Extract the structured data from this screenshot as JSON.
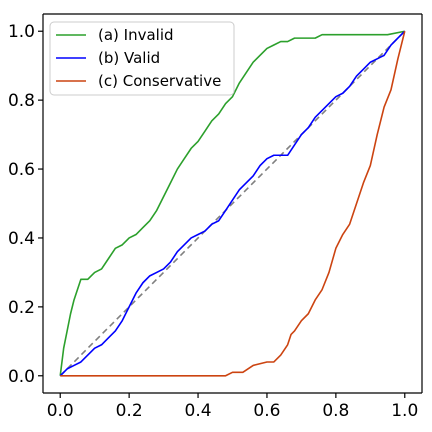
{
  "chart_data": {
    "type": "line",
    "title": "",
    "xlabel": "",
    "ylabel": "",
    "xlim": [
      -0.05,
      1.05
    ],
    "ylim": [
      -0.05,
      1.05
    ],
    "x_ticks": [
      0.0,
      0.2,
      0.4,
      0.6,
      0.8,
      1.0
    ],
    "x_tick_labels": [
      "0.0",
      "0.2",
      "0.4",
      "0.6",
      "0.8",
      "1.0"
    ],
    "y_ticks": [
      0.0,
      0.2,
      0.4,
      0.6,
      0.8,
      1.0
    ],
    "y_tick_labels": [
      "0.0",
      "0.2",
      "0.4",
      "0.6",
      "0.8",
      "1.0"
    ],
    "grid": false,
    "legend_position": "upper-left",
    "reference_line": {
      "style": "dashed",
      "color": "#808080",
      "x": [
        0.0,
        1.0
      ],
      "y": [
        0.0,
        1.0
      ]
    },
    "series": [
      {
        "name": "(a) Invalid",
        "color": "#2ca02c",
        "x": [
          0.0,
          0.01,
          0.02,
          0.03,
          0.04,
          0.05,
          0.06,
          0.07,
          0.08,
          0.09,
          0.1,
          0.12,
          0.14,
          0.16,
          0.18,
          0.2,
          0.22,
          0.24,
          0.26,
          0.28,
          0.3,
          0.32,
          0.34,
          0.36,
          0.38,
          0.4,
          0.42,
          0.44,
          0.46,
          0.48,
          0.5,
          0.52,
          0.54,
          0.56,
          0.58,
          0.6,
          0.62,
          0.64,
          0.66,
          0.68,
          0.7,
          0.72,
          0.74,
          0.76,
          0.8,
          0.85,
          0.9,
          0.95,
          1.0
        ],
        "y": [
          0.0,
          0.08,
          0.13,
          0.18,
          0.22,
          0.25,
          0.28,
          0.28,
          0.28,
          0.29,
          0.3,
          0.31,
          0.34,
          0.37,
          0.38,
          0.4,
          0.41,
          0.43,
          0.45,
          0.48,
          0.52,
          0.56,
          0.6,
          0.63,
          0.66,
          0.68,
          0.71,
          0.74,
          0.76,
          0.79,
          0.81,
          0.85,
          0.88,
          0.91,
          0.93,
          0.95,
          0.96,
          0.97,
          0.97,
          0.98,
          0.98,
          0.98,
          0.98,
          0.99,
          0.99,
          0.99,
          0.99,
          0.99,
          1.0
        ]
      },
      {
        "name": "(b) Valid",
        "color": "#0000ff",
        "x": [
          0.0,
          0.02,
          0.04,
          0.06,
          0.08,
          0.1,
          0.12,
          0.14,
          0.16,
          0.18,
          0.2,
          0.22,
          0.24,
          0.26,
          0.28,
          0.3,
          0.32,
          0.34,
          0.36,
          0.38,
          0.4,
          0.42,
          0.44,
          0.46,
          0.48,
          0.5,
          0.52,
          0.54,
          0.56,
          0.58,
          0.6,
          0.62,
          0.64,
          0.66,
          0.68,
          0.7,
          0.72,
          0.74,
          0.76,
          0.78,
          0.8,
          0.82,
          0.84,
          0.86,
          0.88,
          0.9,
          0.92,
          0.94,
          0.96,
          0.98,
          1.0
        ],
        "y": [
          0.0,
          0.02,
          0.03,
          0.04,
          0.06,
          0.08,
          0.09,
          0.11,
          0.13,
          0.16,
          0.2,
          0.24,
          0.27,
          0.29,
          0.3,
          0.31,
          0.33,
          0.36,
          0.38,
          0.4,
          0.41,
          0.42,
          0.44,
          0.45,
          0.48,
          0.51,
          0.54,
          0.56,
          0.58,
          0.61,
          0.63,
          0.64,
          0.64,
          0.64,
          0.67,
          0.7,
          0.72,
          0.75,
          0.77,
          0.79,
          0.81,
          0.82,
          0.84,
          0.87,
          0.89,
          0.91,
          0.92,
          0.93,
          0.96,
          0.98,
          1.0
        ]
      },
      {
        "name": "(c) Conservative",
        "color": "#cc4411",
        "x": [
          0.0,
          0.1,
          0.2,
          0.3,
          0.4,
          0.48,
          0.5,
          0.53,
          0.56,
          0.6,
          0.62,
          0.64,
          0.66,
          0.67,
          0.68,
          0.7,
          0.72,
          0.74,
          0.76,
          0.78,
          0.8,
          0.82,
          0.84,
          0.86,
          0.88,
          0.9,
          0.92,
          0.94,
          0.96,
          0.98,
          1.0
        ],
        "y": [
          0.0,
          0.0,
          0.0,
          0.0,
          0.0,
          0.0,
          0.01,
          0.01,
          0.03,
          0.04,
          0.04,
          0.06,
          0.09,
          0.12,
          0.13,
          0.16,
          0.18,
          0.22,
          0.25,
          0.3,
          0.37,
          0.41,
          0.44,
          0.5,
          0.56,
          0.61,
          0.7,
          0.78,
          0.83,
          0.92,
          1.0
        ]
      }
    ]
  }
}
